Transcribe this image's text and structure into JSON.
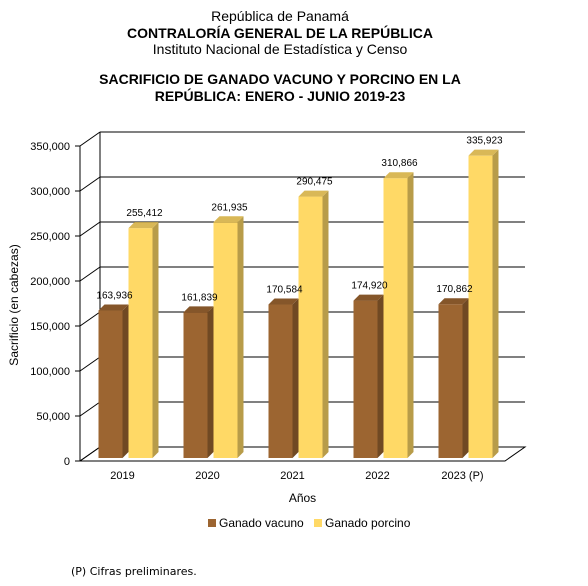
{
  "header": {
    "line1": "República de Panamá",
    "line2": "CONTRALORÍA GENERAL DE LA REPÚBLICA",
    "line3": "Instituto Nacional de Estadística y Censo"
  },
  "footnote": "(P) Cifras preliminares.",
  "colors": {
    "vacuno": "#9c6531",
    "porcino": "#ffd966"
  },
  "chart_data": {
    "type": "bar",
    "title_lines": [
      "SACRIFICIO DE GANADO VACUNO Y PORCINO EN LA",
      "REPÚBLICA: ENERO - JUNIO 2019-23"
    ],
    "xlabel": "Años",
    "ylabel": "Sacrificio (en cabezas)",
    "categories": [
      "2019",
      "2020",
      "2021",
      "2022",
      "2023 (P)"
    ],
    "series": [
      {
        "name": "Ganado vacuno",
        "values": [
          163936,
          161839,
          170584,
          174920,
          170862
        ]
      },
      {
        "name": "Ganado porcino",
        "values": [
          255412,
          261935,
          290475,
          310866,
          335923
        ]
      }
    ],
    "value_labels": {
      "Ganado vacuno": [
        "163,936",
        "161,839",
        "170,584",
        "174,920",
        "170,862"
      ],
      "Ganado porcino": [
        "255,412",
        "261,935",
        "290,475",
        "310,866",
        "335,923"
      ]
    },
    "yticks": [
      "0",
      "50,000",
      "100,000",
      "150,000",
      "200,000",
      "250,000",
      "300,000",
      "350,000"
    ],
    "ylim": [
      0,
      350000
    ],
    "grid": true,
    "legend_position": "bottom"
  }
}
